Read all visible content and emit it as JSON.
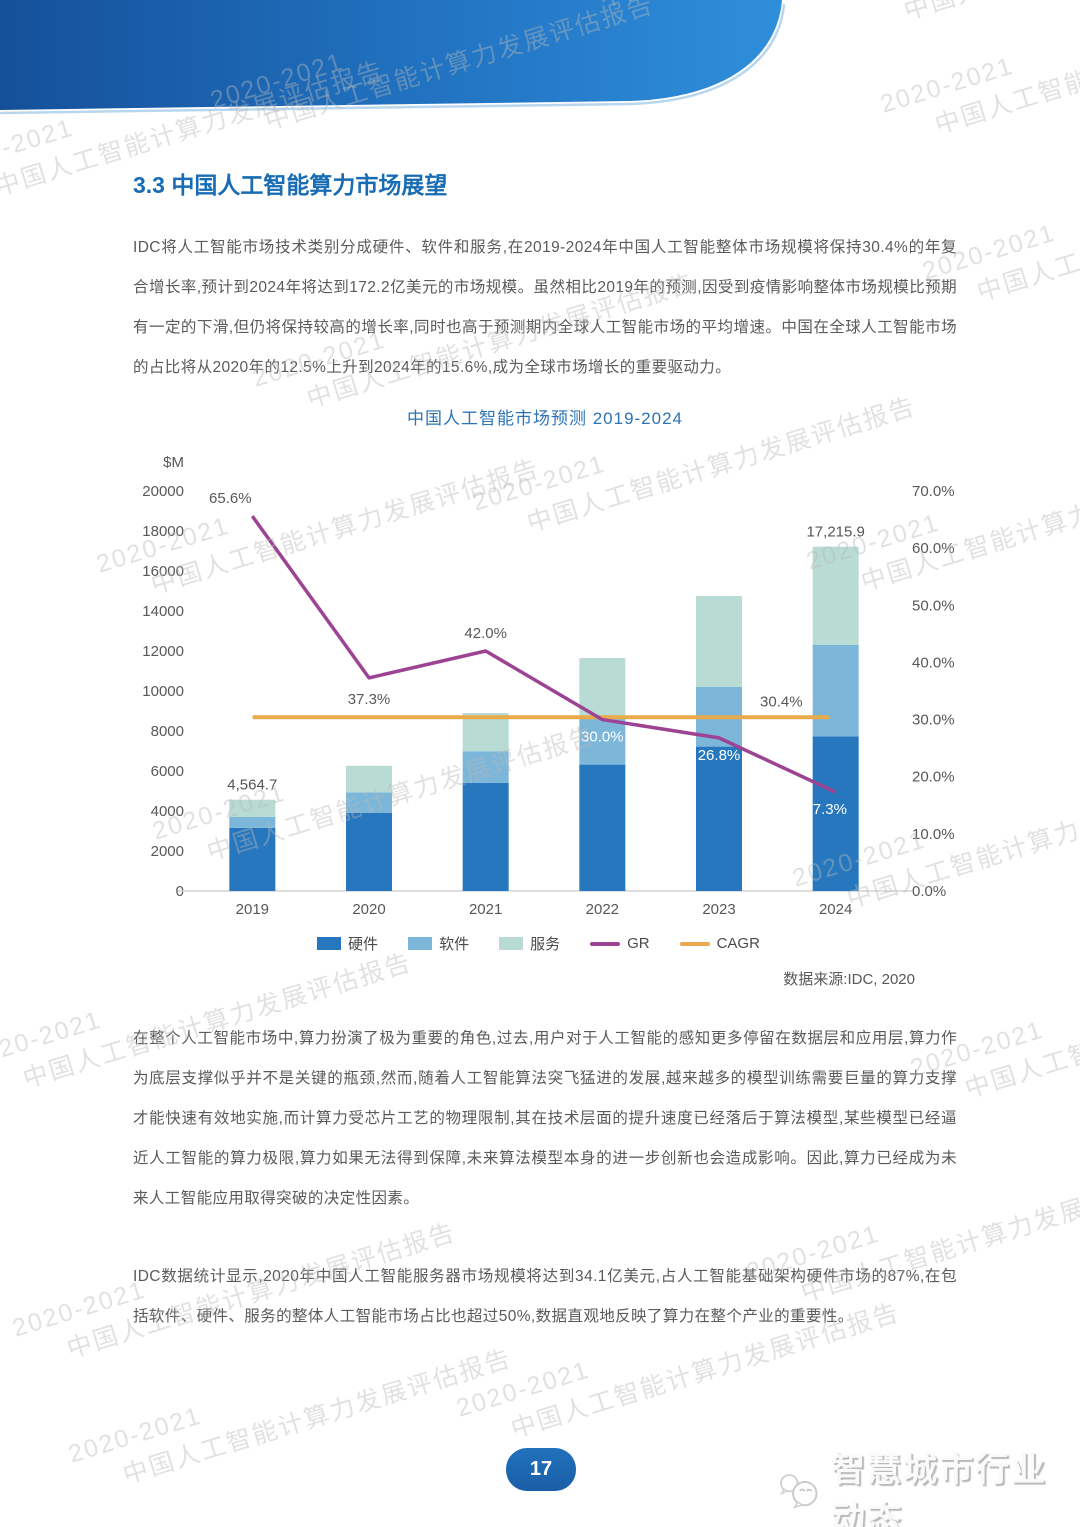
{
  "watermark": {
    "line1": "2020-2021",
    "line2": "中国人工智能计算力发展评估报告"
  },
  "section": {
    "title": "3.3 中国人工智能算力市场展望",
    "paragraph1": "IDC将人工智能市场技术类别分成硬件、软件和服务,在2019-2024年中国人工智能整体市场规模将保持30.4%的年复合增长率,预计到2024年将达到172.2亿美元的市场规模。虽然相比2019年的预测,因受到疫情影响整体市场规模比预期有一定的下滑,但仍将保持较高的增长率,同时也高于预测期内全球人工智能市场的平均增速。中国在全球人工智能市场的占比将从2020年的12.5%上升到2024年的15.6%,成为全球市场增长的重要驱动力。",
    "paragraph2": "在整个人工智能市场中,算力扮演了极为重要的角色,过去,用户对于人工智能的感知更多停留在数据层和应用层,算力作为底层支撑似乎并不是关键的瓶颈,然而,随着人工智能算法突飞猛进的发展,越来越多的模型训练需要巨量的算力支撑才能快速有效地实施,而计算力受芯片工艺的物理限制,其在技术层面的提升速度已经落后于算法模型,某些模型已经逼近人工智能的算力极限,算力如果无法得到保障,未来算法模型本身的进一步创新也会造成影响。因此,算力已经成为未来人工智能应用取得突破的决定性因素。",
    "paragraph3": "IDC数据统计显示,2020年中国人工智能服务器市场规模将达到34.1亿美元,占人工智能基础架构硬件市场的87%,在包括软件、硬件、服务的整体人工智能市场占比也超过50%,数据直观地反映了算力在整个产业的重要性。"
  },
  "chart_data": {
    "type": "bar",
    "subtype": "stacked bars with line overlays",
    "title": "中国人工智能市场预测 2019-2024",
    "categories": [
      "2019",
      "2020",
      "2021",
      "2022",
      "2023",
      "2024"
    ],
    "series": [
      {
        "name": "硬件",
        "type": "bar",
        "axis": "left",
        "values": [
          3160,
          3900,
          5410,
          6320,
          7220,
          7730
        ]
      },
      {
        "name": "软件",
        "type": "bar",
        "axis": "left",
        "values": [
          550,
          1030,
          1580,
          2390,
          2990,
          4570
        ]
      },
      {
        "name": "服务",
        "type": "bar",
        "axis": "left",
        "values": [
          854.7,
          1330,
          1910,
          2940,
          4540,
          4915.9
        ]
      },
      {
        "name": "GR",
        "type": "line",
        "axis": "right",
        "values": [
          65.6,
          37.3,
          42.0,
          30.0,
          26.8,
          17.3
        ]
      },
      {
        "name": "CAGR",
        "type": "line",
        "axis": "right",
        "values": [
          30.4,
          30.4,
          30.4,
          30.4,
          30.4,
          30.4
        ]
      }
    ],
    "total_labels": [
      "4,564.7",
      null,
      null,
      null,
      null,
      "17,215.9"
    ],
    "gr_point_labels": [
      "65.6%",
      "37.3%",
      "42.0%",
      "30.0%",
      "26.8%",
      "17.3%"
    ],
    "gr_label_styles": [
      "above-dark",
      "below-dark",
      "above-dark",
      "below-white",
      "below-white",
      "below-white"
    ],
    "cagr_label": "30.4%",
    "left_axis": {
      "label": "$M",
      "min": 0,
      "max": 20000,
      "step": 2000
    },
    "right_axis": {
      "min": 0,
      "max": 70,
      "step": 10,
      "suffix": "%"
    },
    "colors": {
      "硬件": "#2677bd",
      "软件": "#7cb7da",
      "服务": "#b8dcd3",
      "GR": "#9c4493",
      "CAGR": "#e8aa4a"
    },
    "legend_position": "bottom",
    "grid": false
  },
  "chart_source": "数据来源:IDC, 2020",
  "footer": {
    "page_number": "17",
    "logo_text": "智慧城市行业动态"
  }
}
